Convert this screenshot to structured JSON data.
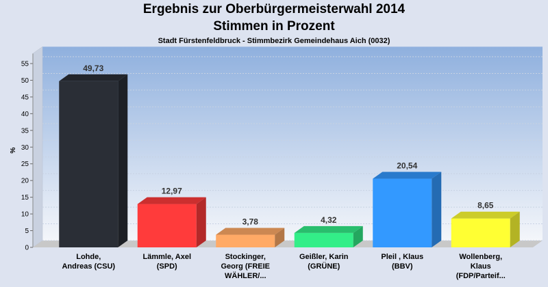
{
  "chart_data": {
    "type": "bar",
    "title": "Ergebnis zur Oberbürgermeisterwahl 2014",
    "subtitle": "Stimmen in Prozent",
    "subsubtitle": "Stadt Fürstenfeldbruck - Stimmbezirk Gemeindehaus Aich (0032)",
    "ylabel": "%",
    "ylim": [
      0,
      58
    ],
    "yticks": [
      0,
      5,
      10,
      15,
      20,
      25,
      30,
      35,
      40,
      45,
      50,
      55
    ],
    "categories": [
      [
        "Lohde,",
        "Andreas (CSU)"
      ],
      [
        "Lämmle, Axel",
        "(SPD)"
      ],
      [
        "Stockinger,",
        "Georg (FREIE",
        "WÄHLER/..."
      ],
      [
        "Geißler, Karin",
        "(GRÜNE)"
      ],
      [
        "Pleil , Klaus",
        "(BBV)"
      ],
      [
        "Wollenberg,",
        "Klaus",
        "(FDP/Parteif..."
      ]
    ],
    "values": [
      49.73,
      12.97,
      3.78,
      4.32,
      20.54,
      8.65
    ],
    "labels": [
      "49,73",
      "12,97",
      "3,78",
      "4,32",
      "20,54",
      "8,65"
    ],
    "colors": [
      "#2a2e36",
      "#ff3b3b",
      "#ffaa66",
      "#33ee88",
      "#3399ff",
      "#ffff33"
    ],
    "grid": true
  }
}
